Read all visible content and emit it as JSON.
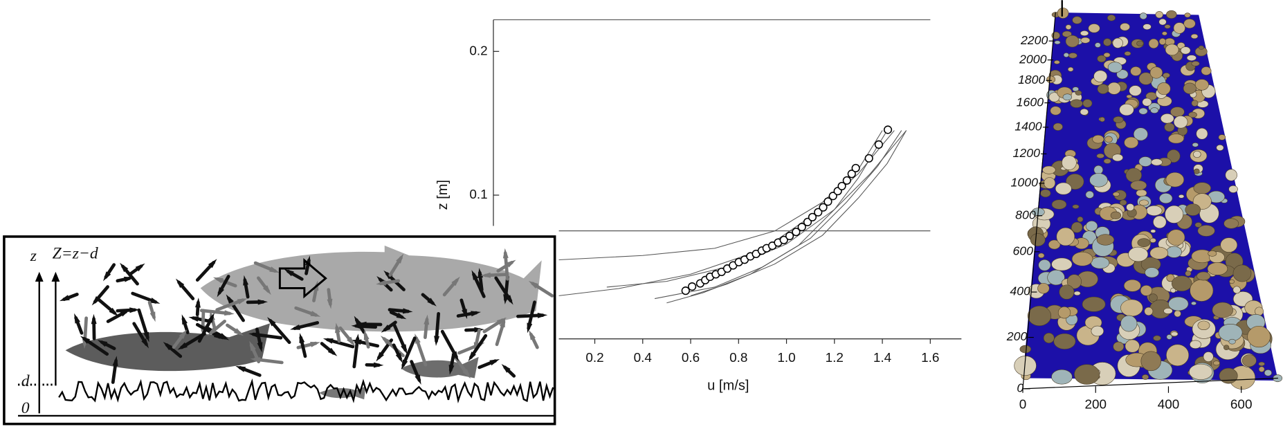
{
  "illustration": {
    "labels": {
      "z": "z",
      "Z": "Z=z−d",
      "d": "d",
      "zero": "0"
    }
  },
  "chart_data": [
    {
      "type": "scatter",
      "xlabel": "u [m/s]",
      "ylabel": "z [m]",
      "xlim": [
        0.05,
        1.73
      ],
      "ylim": [
        0,
        0.222
      ],
      "xticks": [
        0.2,
        0.4,
        0.6,
        0.8,
        {
          "value": 1,
          "label": "1.0"
        },
        1.2,
        1.4,
        1.6
      ],
      "yticks": [
        0.1,
        0.2
      ],
      "points": {
        "color": "#ffffff",
        "x": [
          0.579,
          0.606,
          0.64,
          0.661,
          0.681,
          0.705,
          0.729,
          0.753,
          0.777,
          0.801,
          0.825,
          0.849,
          0.873,
          0.897,
          0.917,
          0.941,
          0.965,
          0.989,
          1.013,
          1.04,
          1.064,
          1.088,
          1.108,
          1.132,
          1.153,
          1.173,
          1.194,
          1.214,
          1.231,
          1.252,
          1.272,
          1.289,
          1.344,
          1.385,
          1.423
        ],
        "y": [
          0.0335,
          0.0364,
          0.0386,
          0.0409,
          0.0432,
          0.0449,
          0.0466,
          0.0489,
          0.0511,
          0.0534,
          0.0551,
          0.0574,
          0.0591,
          0.0614,
          0.0631,
          0.0648,
          0.067,
          0.0688,
          0.0716,
          0.0744,
          0.0778,
          0.0813,
          0.0847,
          0.0881,
          0.0915,
          0.0955,
          0.0994,
          0.1028,
          0.1063,
          0.1102,
          0.1148,
          0.1188,
          0.1256,
          0.1352,
          0.1455
        ]
      },
      "profile_color": "#555555",
      "profiles": [
        {
          "x": [
            0.05,
            0.3,
            0.6,
            0.9,
            1.1,
            1.3,
            1.45
          ],
          "y": [
            0.03,
            0.035,
            0.045,
            0.062,
            0.085,
            0.115,
            0.145
          ]
        },
        {
          "x": [
            0.25,
            0.5,
            0.8,
            1.0,
            1.2,
            1.35,
            1.5
          ],
          "y": [
            0.036,
            0.04,
            0.052,
            0.066,
            0.09,
            0.115,
            0.145
          ]
        },
        {
          "x": [
            0.45,
            0.7,
            0.9,
            1.1,
            1.25,
            1.38,
            1.48
          ],
          "y": [
            0.028,
            0.036,
            0.05,
            0.07,
            0.095,
            0.12,
            0.145
          ]
        },
        {
          "x": [
            0.5,
            0.65,
            0.85,
            1.05,
            1.2,
            1.3,
            1.42
          ],
          "y": [
            0.025,
            0.032,
            0.045,
            0.065,
            0.09,
            0.112,
            0.145
          ]
        },
        {
          "x": [
            0.05,
            0.4,
            0.7,
            0.95,
            1.15,
            1.3,
            1.4
          ],
          "y": [
            0.055,
            0.058,
            0.063,
            0.075,
            0.095,
            0.118,
            0.145
          ]
        },
        {
          "x": [
            0.6,
            0.75,
            0.95,
            1.15,
            1.3,
            1.42,
            1.5
          ],
          "y": [
            0.03,
            0.038,
            0.052,
            0.072,
            0.098,
            0.122,
            0.145
          ]
        }
      ]
    },
    {
      "type": "surface",
      "color": "#1c10a8",
      "xticks": [
        0,
        200,
        400,
        600
      ],
      "yticks": [
        0,
        200,
        400,
        600,
        800,
        1000,
        1200,
        1400,
        1600,
        1800,
        2000,
        2200
      ]
    }
  ]
}
